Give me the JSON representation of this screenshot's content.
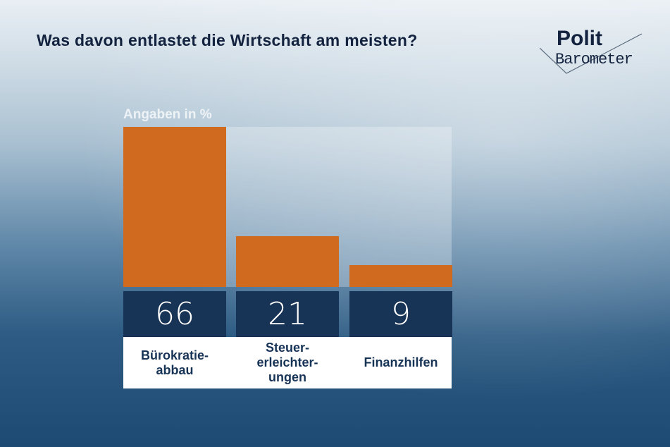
{
  "title": "Was davon entlastet die Wirtschaft am meisten?",
  "logo": {
    "line1": "Polit",
    "line2": "Barometer"
  },
  "chart_data": {
    "type": "bar",
    "title": "Was davon entlastet die Wirtschaft am meisten?",
    "unit_label": "Angaben in %",
    "categories": [
      "Bürokratie-\nabbau",
      "Steuer-\nerleichter-\nungen",
      "Finanzhilfen"
    ],
    "values": [
      66,
      21,
      9
    ],
    "value_labels": [
      "66",
      "21",
      "9"
    ],
    "ylim": [
      0,
      66
    ],
    "colors": {
      "bar": "#cf6a1f",
      "value_box": "#173356"
    }
  }
}
